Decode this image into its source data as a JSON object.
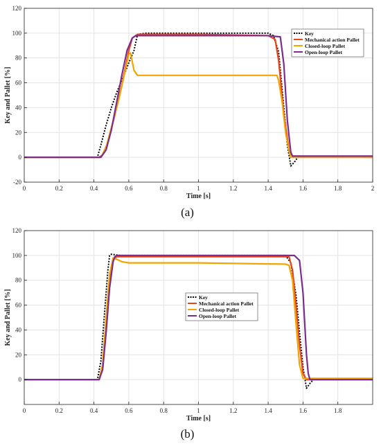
{
  "chart_data": [
    {
      "type": "line",
      "caption": "(a)",
      "xlabel": "Time [s]",
      "ylabel": "Key and Pallet [%]",
      "xlim": [
        0,
        2
      ],
      "ylim": [
        -20,
        120
      ],
      "xticks": [
        0,
        0.2,
        0.4,
        0.6,
        0.8,
        1,
        1.2,
        1.4,
        1.6,
        1.8,
        2
      ],
      "yticks": [
        -20,
        0,
        20,
        40,
        60,
        80,
        100,
        120
      ],
      "grid": true,
      "legend_position": "top-right",
      "series": [
        {
          "name": "Key",
          "color": "#000000",
          "style": "dotted",
          "x": [
            0,
            0.38,
            0.42,
            0.44,
            0.47,
            0.5,
            0.53,
            0.56,
            0.6,
            0.63,
            0.65,
            0.7,
            1.0,
            1.3,
            1.4,
            1.43,
            1.46,
            1.49,
            1.51,
            1.53,
            1.55,
            1.57,
            1.6,
            2
          ],
          "y": [
            0,
            0,
            0,
            10,
            26,
            40,
            52,
            62,
            76,
            86,
            99,
            100,
            100,
            100,
            100,
            98,
            85,
            40,
            10,
            -7,
            -4,
            0,
            0,
            0
          ]
        },
        {
          "name": "Mechanical action Pallet",
          "color": "#e8451e",
          "style": "solid",
          "x": [
            0,
            0.43,
            0.45,
            0.48,
            0.52,
            0.56,
            0.6,
            0.62,
            0.65,
            0.7,
            1.0,
            1.4,
            1.44,
            1.46,
            1.49,
            1.52,
            1.54,
            2
          ],
          "y": [
            0,
            0,
            2,
            12,
            34,
            58,
            86,
            96,
            99,
            99,
            99,
            98,
            95,
            78,
            35,
            5,
            1,
            0
          ]
        },
        {
          "name": "Closed-loop Pallet",
          "color": "#f0a500",
          "style": "solid",
          "x": [
            0,
            0.44,
            0.47,
            0.5,
            0.54,
            0.58,
            0.6,
            0.61,
            0.63,
            0.65,
            0.7,
            1.0,
            1.45,
            1.46,
            1.48,
            1.5,
            1.52,
            1.53,
            1.6,
            2
          ],
          "y": [
            0,
            0,
            8,
            24,
            45,
            70,
            83,
            84,
            70,
            66,
            66,
            66,
            66,
            62,
            45,
            20,
            5,
            0,
            0,
            0
          ]
        },
        {
          "name": "Open-loop Pallet",
          "color": "#7b2d8e",
          "style": "solid",
          "x": [
            0,
            0.44,
            0.47,
            0.5,
            0.53,
            0.56,
            0.59,
            0.62,
            0.64,
            0.7,
            1.0,
            1.4,
            1.47,
            1.49,
            1.51,
            1.53,
            1.54,
            2
          ],
          "y": [
            0,
            0,
            6,
            22,
            44,
            66,
            86,
            96,
            98,
            98,
            98,
            98,
            97,
            75,
            30,
            4,
            1,
            1
          ]
        }
      ]
    },
    {
      "type": "line",
      "caption": "(b)",
      "xlabel": "Time [s]",
      "ylabel": "Key and Pallet [%]",
      "xlim": [
        0,
        2
      ],
      "ylim": [
        -20,
        120
      ],
      "xticks": [
        0,
        0.2,
        0.4,
        0.6,
        0.8,
        1,
        1.2,
        1.4,
        1.6,
        1.8
      ],
      "yticks": [
        0,
        20,
        40,
        60,
        80,
        100,
        120
      ],
      "grid": true,
      "legend_position": "center",
      "series": [
        {
          "name": "Key",
          "color": "#000000",
          "style": "dotted",
          "x": [
            0,
            0.42,
            0.44,
            0.46,
            0.48,
            0.49,
            0.5,
            0.55,
            1.0,
            1.5,
            1.53,
            1.56,
            1.58,
            1.6,
            1.62,
            1.64,
            1.66,
            2
          ],
          "y": [
            0,
            0,
            15,
            52,
            88,
            100,
            101,
            100,
            100,
            100,
            94,
            68,
            38,
            10,
            -7,
            -3,
            0,
            0
          ]
        },
        {
          "name": "Mechanical action Pallet",
          "color": "#e8451e",
          "style": "solid",
          "x": [
            0,
            0.43,
            0.45,
            0.47,
            0.49,
            0.51,
            0.53,
            0.6,
            1.0,
            1.52,
            1.54,
            1.56,
            1.58,
            1.6,
            1.62,
            2
          ],
          "y": [
            0,
            0,
            12,
            48,
            82,
            96,
            99,
            99,
            99,
            99,
            88,
            60,
            28,
            5,
            0,
            0
          ]
        },
        {
          "name": "Closed-loop Pallet",
          "color": "#f0a500",
          "style": "solid",
          "x": [
            0,
            0.43,
            0.45,
            0.47,
            0.49,
            0.51,
            0.53,
            0.56,
            0.6,
            1.0,
            1.5,
            1.52,
            1.54,
            1.56,
            1.58,
            1.6,
            2
          ],
          "y": [
            0,
            0,
            12,
            50,
            85,
            98,
            97,
            95,
            94,
            94,
            93,
            92,
            80,
            45,
            12,
            1,
            1
          ]
        },
        {
          "name": "Open-loop Pallet",
          "color": "#7b2d8e",
          "style": "solid",
          "x": [
            0,
            0.43,
            0.45,
            0.47,
            0.49,
            0.51,
            0.52,
            0.53,
            0.6,
            1.0,
            1.55,
            1.58,
            1.6,
            1.62,
            1.63,
            1.64,
            2
          ],
          "y": [
            0,
            0,
            8,
            38,
            74,
            95,
            99,
            100,
            100,
            100,
            100,
            96,
            70,
            20,
            5,
            0,
            0
          ]
        }
      ]
    }
  ]
}
